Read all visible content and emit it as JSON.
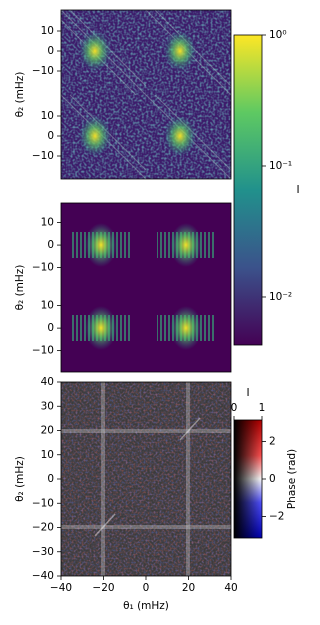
{
  "chart_data": [
    {
      "type": "heatmap",
      "ylabel": "θ₂ (mHz)",
      "ylim": [
        -64,
        20.5
      ],
      "yticks": [
        10,
        0,
        {
          "value": -10,
          "label": "−10"
        },
        {
          "value": -32.5,
          "label": "10"
        },
        {
          "value": -42.5,
          "label": "0"
        },
        {
          "value": -52.5,
          "label": "−10"
        }
      ]
    },
    {
      "type": "heatmap",
      "ylabel": "θ₂ (mHz)",
      "ylim": [
        -56.4,
        18.7
      ],
      "yticks": [
        10,
        0,
        {
          "value": -10,
          "label": "−10"
        },
        {
          "value": -26.9,
          "label": "10"
        },
        {
          "value": -36.9,
          "label": "0"
        },
        {
          "value": -46.9,
          "label": "−10"
        }
      ]
    },
    {
      "type": "heatmap",
      "xlabel": "θ₁ (mHz)",
      "ylabel": "θ₂ (mHz)",
      "xlim": [
        -40,
        40
      ],
      "ylim": [
        -40,
        40
      ],
      "xticks": [
        {
          "value": -40,
          "label": "−40"
        },
        {
          "value": -20,
          "label": "−20"
        },
        0,
        20,
        40
      ],
      "yticks": [
        40,
        30,
        20,
        10,
        0,
        {
          "value": -10,
          "label": "−10"
        },
        {
          "value": -20,
          "label": "−20"
        },
        {
          "value": -30,
          "label": "−30"
        },
        {
          "value": -40,
          "label": "−40"
        }
      ]
    },
    {
      "type": "colorbar",
      "label": "I",
      "log_scale": true,
      "ylim": [
        0.0043,
        1
      ],
      "yticks": [
        {
          "value": 1,
          "label": "10⁰"
        },
        {
          "value": 0.1,
          "label": "10⁻¹"
        },
        {
          "value": 0.01,
          "label": "10⁻²"
        }
      ]
    },
    {
      "type": "colorbar2d",
      "label": "Phase (rad)",
      "xlabel": "I",
      "xlim": [
        0,
        1
      ],
      "xticks": [
        0,
        1
      ],
      "ylim": [
        -3.14,
        3.14
      ],
      "yticks": [
        2,
        0,
        {
          "value": -2,
          "label": "−2"
        }
      ]
    }
  ]
}
